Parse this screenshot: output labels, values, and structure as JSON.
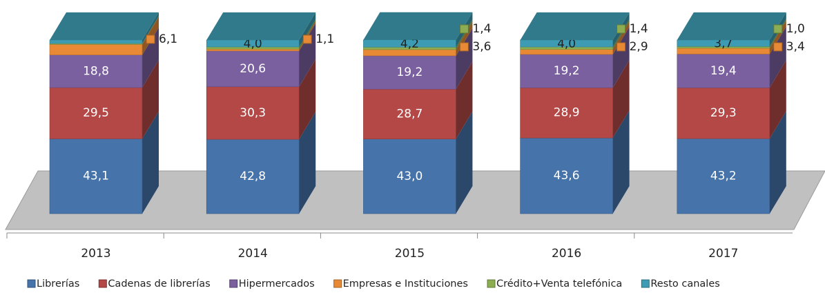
{
  "chart_data": {
    "type": "bar3d_stacked",
    "categories": [
      "2013",
      "2014",
      "2015",
      "2016",
      "2017"
    ],
    "ylim": [
      0,
      100
    ],
    "series": [
      {
        "name": "Librerías",
        "color": "#4673a9",
        "values": [
          43.1,
          42.8,
          43.0,
          43.6,
          43.2
        ],
        "value_labels": [
          "43,1",
          "42,8",
          "43,0",
          "43,6",
          "43,2"
        ]
      },
      {
        "name": "Cadenas de librerías",
        "color": "#b34846",
        "values": [
          29.5,
          30.3,
          28.7,
          28.9,
          29.3
        ],
        "value_labels": [
          "29,5",
          "30,3",
          "28,7",
          "28,9",
          "29,3"
        ]
      },
      {
        "name": "Hipermercados",
        "color": "#7b60a0",
        "values": [
          18.8,
          20.6,
          19.2,
          19.2,
          19.4
        ],
        "value_labels": [
          "18,8",
          "20,6",
          "19,2",
          "19,2",
          "19,4"
        ]
      },
      {
        "name": "Empresas e Instituciones",
        "color": "#e88a35",
        "values": [
          6.1,
          1.1,
          3.6,
          2.9,
          3.4
        ],
        "value_labels": [
          "6,1",
          "1,1",
          "3,6",
          "2,9",
          "3,4"
        ]
      },
      {
        "name": "Crédito+Venta telefónica",
        "color": "#8cad52",
        "values": [
          0.5,
          1.2,
          1.4,
          1.4,
          1.0
        ],
        "value_labels": [
          null,
          null,
          "1,4",
          "1,4",
          "1,0"
        ]
      },
      {
        "name": "Resto canales",
        "color": "#3d9cb3",
        "values": [
          2.0,
          4.0,
          4.2,
          4.0,
          3.7
        ],
        "value_labels": [
          null,
          "4,0",
          "4,2",
          "4,0",
          "3,7"
        ]
      }
    ]
  }
}
